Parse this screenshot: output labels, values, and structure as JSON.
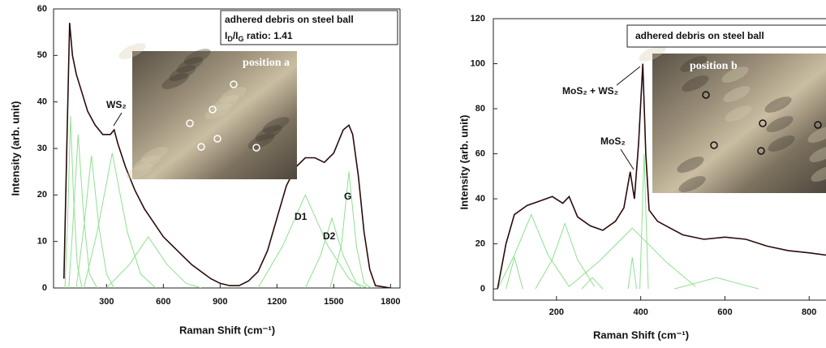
{
  "chart_data": [
    {
      "type": "line",
      "box_text": "adhered debris on steel ball",
      "ratio_parts": [
        "I",
        "D",
        "/I",
        "G",
        " ratio: 1.41"
      ],
      "image_label": "position a",
      "annotations": [
        "WS₂",
        "D1",
        "D2",
        "G"
      ],
      "xlabel": "Raman Shift (cm⁻¹)",
      "ylabel": "Intensity (arb. unit)",
      "xlim": [
        20,
        1850
      ],
      "ylim": [
        0,
        60
      ],
      "xticks": [
        300,
        600,
        900,
        1200,
        1500,
        1800
      ],
      "yticks": [
        0,
        10,
        20,
        30,
        40,
        50,
        60
      ],
      "series": [
        {
          "color": "#8fe08f",
          "x": [
            80,
            95,
            110,
            125,
            145,
            170
          ],
          "values": [
            0,
            15,
            37,
            20,
            5,
            0
          ]
        },
        {
          "color": "#8fe08f",
          "x": [
            100,
            120,
            150,
            180,
            210,
            250
          ],
          "values": [
            0,
            12,
            33,
            15,
            3,
            0
          ]
        },
        {
          "color": "#8fe08f",
          "x": [
            140,
            180,
            220,
            260,
            300,
            340
          ],
          "values": [
            0,
            13,
            28.5,
            13,
            3,
            0
          ]
        },
        {
          "color": "#8fe08f",
          "x": [
            180,
            250,
            330,
            410,
            480,
            560
          ],
          "values": [
            0,
            12,
            29,
            12,
            3,
            0
          ]
        },
        {
          "color": "#8fe08f",
          "x": [
            300,
            420,
            520,
            620,
            720,
            800
          ],
          "values": [
            0,
            5,
            11,
            5,
            1,
            0
          ]
        },
        {
          "color": "#8fe08f",
          "x": [
            1100,
            1230,
            1350,
            1470,
            1580,
            1650
          ],
          "values": [
            0,
            9,
            20,
            9,
            2,
            0
          ]
        },
        {
          "color": "#8fe08f",
          "x": [
            1350,
            1430,
            1490,
            1550,
            1620,
            1680
          ],
          "values": [
            0,
            7,
            15,
            7,
            1,
            0
          ]
        },
        {
          "color": "#8fe08f",
          "x": [
            1480,
            1540,
            1580,
            1620,
            1660,
            1700
          ],
          "values": [
            0,
            9,
            25,
            9,
            1,
            0
          ]
        },
        {
          "color": "#2a0b0b",
          "x": [
            75,
            90,
            105,
            120,
            140,
            170,
            200,
            240,
            280,
            320,
            340,
            360,
            400,
            450,
            500,
            550,
            600,
            650,
            700,
            750,
            800,
            850,
            900,
            950,
            1000,
            1050,
            1100,
            1150,
            1200,
            1250,
            1300,
            1350,
            1400,
            1450,
            1500,
            1550,
            1580,
            1600,
            1630,
            1660,
            1690,
            1720,
            1800
          ],
          "values": [
            2,
            30,
            57,
            50,
            46,
            42,
            38,
            35,
            33,
            33,
            34,
            31,
            26,
            21,
            17,
            14,
            11,
            9,
            7,
            5,
            3.5,
            2,
            1,
            0.5,
            0.5,
            1.5,
            3.5,
            8,
            15,
            22,
            26,
            28,
            28,
            27,
            29,
            34,
            35,
            33,
            24,
            12,
            4,
            0.5,
            0
          ]
        }
      ]
    },
    {
      "type": "line",
      "box_text": "adhered debris on steel ball",
      "image_label": "position b",
      "annotations": [
        "MoS₂ + WS₂",
        "MoS₂"
      ],
      "xlabel": "Raman Shift (cm⁻¹)",
      "ylabel": "Intensity (arb. unit)",
      "xlim": [
        50,
        840
      ],
      "ylim": [
        -5,
        120
      ],
      "xticks": [
        200,
        400,
        600,
        800
      ],
      "yticks": [
        0,
        20,
        40,
        60,
        80,
        100,
        120
      ],
      "series": [
        {
          "color": "#8fe08f",
          "x": [
            80,
            90,
            100,
            110,
            120
          ],
          "values": [
            0,
            7,
            14,
            7,
            0
          ]
        },
        {
          "color": "#8fe08f",
          "x": [
            60,
            100,
            140,
            180,
            230
          ],
          "values": [
            0,
            15,
            33,
            15,
            1
          ]
        },
        {
          "color": "#8fe08f",
          "x": [
            150,
            190,
            220,
            250,
            290
          ],
          "values": [
            0,
            13,
            29,
            13,
            1
          ]
        },
        {
          "color": "#8fe08f",
          "x": [
            260,
            275,
            285,
            295,
            310
          ],
          "values": [
            0,
            3,
            5,
            3,
            0
          ]
        },
        {
          "color": "#8fe08f",
          "x": [
            230,
            300,
            380,
            460,
            530
          ],
          "values": [
            1,
            12,
            27,
            12,
            1
          ]
        },
        {
          "color": "#8fe08f",
          "x": [
            370,
            375,
            380,
            385,
            390
          ],
          "values": [
            0,
            7,
            14,
            7,
            0
          ]
        },
        {
          "color": "#8fe08f",
          "x": [
            398,
            403,
            408,
            413,
            418
          ],
          "values": [
            0,
            30,
            60,
            30,
            0
          ]
        },
        {
          "color": "#8fe08f",
          "x": [
            480,
            540,
            580,
            620,
            680
          ],
          "values": [
            0,
            3,
            5,
            3,
            0
          ]
        },
        {
          "color": "#2a0b0b",
          "x": [
            60,
            80,
            100,
            130,
            160,
            190,
            215,
            230,
            250,
            280,
            310,
            340,
            360,
            375,
            385,
            395,
            405,
            412,
            420,
            440,
            460,
            500,
            550,
            600,
            650,
            700,
            750,
            800,
            840
          ],
          "values": [
            0,
            20,
            33,
            37,
            39,
            41,
            38,
            41,
            32,
            28,
            26,
            30,
            36,
            52,
            40,
            65,
            100,
            60,
            35,
            30,
            28,
            24,
            22,
            23,
            22,
            19,
            17,
            16,
            15
          ]
        }
      ]
    }
  ]
}
